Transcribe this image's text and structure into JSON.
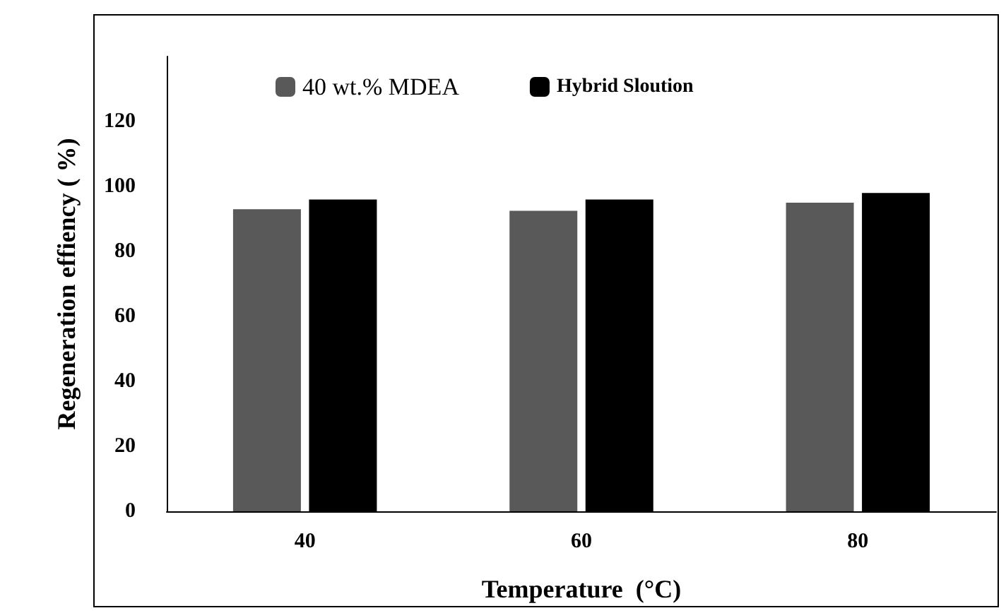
{
  "chart_data": {
    "type": "bar",
    "xlabel": "Temperature  (°C)",
    "ylabel": "Regeneration effiency ( %)",
    "categories": [
      "40",
      "60",
      "80"
    ],
    "series": [
      {
        "name": "40 wt.% MDEA",
        "color": "#595959",
        "values": [
          93,
          92.5,
          95
        ]
      },
      {
        "name": "Hybrid Sloution",
        "color": "#000000",
        "values": [
          96,
          96,
          98
        ]
      }
    ],
    "ylim": [
      0,
      140
    ],
    "yticks": [
      0,
      20,
      40,
      60,
      80,
      100,
      120
    ],
    "grid": false,
    "legend": "top left"
  }
}
